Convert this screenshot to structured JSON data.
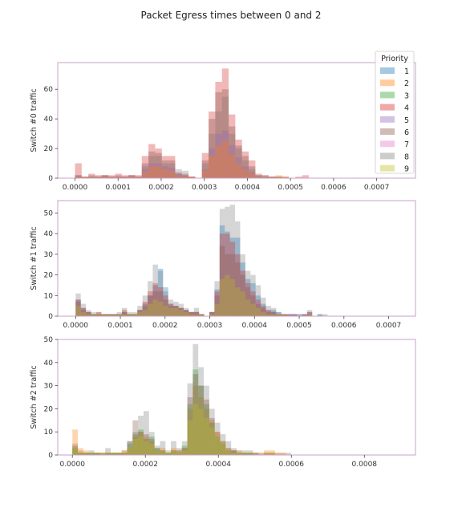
{
  "title": "Packet Egress times between 0 and 2",
  "legend": {
    "title": "Priority",
    "entries": [
      "1",
      "2",
      "3",
      "4",
      "5",
      "6",
      "7",
      "8",
      "9"
    ],
    "colors": [
      "#1f77b4",
      "#ff7f0e",
      "#2ca02c",
      "#d62728",
      "#9467bd",
      "#8c564b",
      "#e377c2",
      "#7f7f7f",
      "#bcbd22"
    ]
  },
  "chart_data": [
    {
      "type": "histogram",
      "ylabel": "Switch #0 traffic",
      "xlim": [
        -4e-05,
        0.00079
      ],
      "ylim": [
        0,
        78
      ],
      "xticks": [
        0,
        0.0001,
        0.0002,
        0.0003,
        0.0004,
        0.0005,
        0.0006,
        0.0007
      ],
      "xtick_labels": [
        "0.0000",
        "0.0001",
        "0.0002",
        "0.0003",
        "0.0004",
        "0.0005",
        "0.0006",
        "0.0007"
      ],
      "yticks": [
        0,
        20,
        40,
        60
      ],
      "bin_width": 1.55e-05,
      "x": [
        0.0,
        1.55e-05,
        3.1e-05,
        4.65e-05,
        6.2e-05,
        7.75e-05,
        9.3e-05,
        0.0001085,
        0.000124,
        0.0001395,
        0.000155,
        0.0001705,
        0.000186,
        0.0002015,
        0.000217,
        0.0002325,
        0.000248,
        0.0002635,
        0.000279,
        0.0002945,
        0.00031,
        0.0003255,
        0.000341,
        0.0003565,
        0.000372,
        0.0003875,
        0.000403,
        0.0004185,
        0.000434,
        0.0004495,
        0.000465,
        0.0004805,
        0.000496,
        0.0005115,
        0.000527
      ],
      "series": [
        {
          "name": "4",
          "values": [
            10,
            1,
            3,
            2,
            2,
            2,
            3,
            2,
            2,
            2,
            15,
            23,
            20,
            15,
            15,
            3,
            2,
            1,
            0,
            17,
            45,
            65,
            74,
            43,
            26,
            18,
            12,
            3,
            2,
            1,
            1,
            1,
            0,
            1,
            2
          ]
        },
        {
          "name": "8",
          "values": [
            2,
            1,
            2,
            1,
            2,
            1,
            2,
            1,
            2,
            1,
            8,
            15,
            15,
            10,
            10,
            6,
            5,
            1,
            0,
            10,
            30,
            45,
            55,
            30,
            20,
            12,
            6,
            2,
            2,
            1,
            1,
            1,
            0,
            0,
            0
          ]
        },
        {
          "name": "6",
          "values": [
            2,
            1,
            1,
            1,
            2,
            1,
            1,
            1,
            2,
            1,
            10,
            18,
            17,
            12,
            12,
            4,
            3,
            1,
            0,
            12,
            40,
            58,
            60,
            35,
            22,
            15,
            8,
            2,
            1,
            1,
            1,
            0,
            0,
            0,
            0
          ]
        },
        {
          "name": "5",
          "values": [
            1,
            0,
            1,
            1,
            1,
            1,
            1,
            1,
            1,
            1,
            6,
            10,
            10,
            8,
            7,
            3,
            2,
            1,
            0,
            6,
            20,
            30,
            32,
            22,
            14,
            8,
            4,
            1,
            1,
            1,
            0,
            0,
            0,
            0,
            0
          ]
        },
        {
          "name": "2",
          "values": [
            1,
            1,
            1,
            1,
            1,
            1,
            1,
            1,
            1,
            1,
            4,
            8,
            8,
            6,
            5,
            2,
            2,
            1,
            0,
            5,
            15,
            22,
            25,
            16,
            10,
            6,
            3,
            1,
            1,
            1,
            2,
            1,
            0,
            0,
            0
          ]
        }
      ]
    },
    {
      "type": "histogram",
      "ylabel": "Switch #1 traffic",
      "xlim": [
        -4e-05,
        0.00076
      ],
      "ylim": [
        0,
        56
      ],
      "xticks": [
        0,
        0.0001,
        0.0002,
        0.0003,
        0.0004,
        0.0005,
        0.0006,
        0.0007
      ],
      "xtick_labels": [
        "0.0000",
        "0.0001",
        "0.0002",
        "0.0003",
        "0.0004",
        "0.0005",
        "0.0006",
        "0.0007"
      ],
      "yticks": [
        0,
        10,
        20,
        30,
        40,
        50
      ],
      "bin_width": 1.15e-05,
      "x": [
        0.0,
        1.15e-05,
        2.3e-05,
        3.45e-05,
        4.6e-05,
        5.75e-05,
        6.9e-05,
        8.05e-05,
        9.2e-05,
        0.0001035,
        0.000115,
        0.0001265,
        0.000138,
        0.0001495,
        0.000161,
        0.0001725,
        0.000184,
        0.0001955,
        0.000207,
        0.0002185,
        0.00023,
        0.0002415,
        0.000253,
        0.0002645,
        0.000276,
        0.0002875,
        0.000299,
        0.0003105,
        0.000322,
        0.0003335,
        0.000345,
        0.0003565,
        0.000368,
        0.0003795,
        0.000391,
        0.0004025,
        0.000414,
        0.0004255,
        0.000437,
        0.0004485,
        0.00046,
        0.0004715,
        0.000483,
        0.0004945,
        0.000506,
        0.0005175,
        0.000529,
        0.0005405,
        0.000552
      ],
      "series": [
        {
          "name": "8",
          "values": [
            11,
            6,
            3,
            2,
            2,
            1,
            1,
            1,
            2,
            4,
            2,
            2,
            5,
            10,
            17,
            25,
            22,
            12,
            8,
            7,
            6,
            4,
            2,
            4,
            1,
            0,
            2,
            17,
            52,
            53,
            54,
            46,
            30,
            22,
            20,
            15,
            9,
            5,
            4,
            2,
            1,
            1,
            1,
            1,
            1,
            3,
            0,
            1,
            1
          ]
        },
        {
          "name": "1",
          "values": [
            8,
            4,
            2,
            1,
            1,
            1,
            1,
            1,
            1,
            2,
            1,
            1,
            3,
            6,
            10,
            15,
            23,
            14,
            6,
            5,
            4,
            3,
            2,
            2,
            1,
            0,
            2,
            13,
            44,
            41,
            38,
            38,
            26,
            18,
            16,
            10,
            6,
            3,
            3,
            2,
            1,
            1,
            1,
            1,
            1,
            2,
            0,
            1,
            0
          ]
        },
        {
          "name": "4",
          "values": [
            8,
            4,
            2,
            1,
            2,
            1,
            1,
            1,
            1,
            3,
            1,
            1,
            3,
            7,
            12,
            16,
            14,
            10,
            6,
            5,
            4,
            3,
            2,
            2,
            1,
            0,
            2,
            12,
            40,
            40,
            36,
            30,
            22,
            16,
            12,
            8,
            5,
            3,
            2,
            1,
            1,
            1,
            1,
            0,
            1,
            2,
            0,
            0,
            0
          ]
        },
        {
          "name": "6",
          "values": [
            7,
            3,
            2,
            1,
            1,
            1,
            1,
            1,
            1,
            2,
            1,
            1,
            3,
            5,
            10,
            12,
            12,
            8,
            5,
            5,
            4,
            3,
            2,
            2,
            1,
            0,
            2,
            10,
            34,
            30,
            30,
            26,
            20,
            14,
            10,
            6,
            4,
            2,
            2,
            1,
            1,
            0,
            0,
            0,
            0,
            1,
            0,
            0,
            0
          ]
        },
        {
          "name": "9",
          "values": [
            5,
            2,
            1,
            1,
            1,
            1,
            1,
            1,
            1,
            1,
            1,
            1,
            2,
            3,
            6,
            8,
            7,
            5,
            4,
            4,
            3,
            2,
            1,
            1,
            1,
            0,
            1,
            6,
            18,
            20,
            18,
            14,
            12,
            8,
            6,
            4,
            2,
            1,
            1,
            1,
            1,
            0,
            0,
            0,
            0,
            1,
            0,
            0,
            0
          ]
        }
      ]
    },
    {
      "type": "histogram",
      "ylabel": "Switch #2 traffic",
      "xlim": [
        -4e-05,
        0.00094
      ],
      "ylim": [
        0,
        50
      ],
      "xticks": [
        0,
        0.0002,
        0.0004,
        0.0006,
        0.0008
      ],
      "xtick_labels": [
        "0.0000",
        "0.0002",
        "0.0004",
        "0.0006",
        "0.0008"
      ],
      "yticks": [
        0,
        10,
        20,
        30,
        40,
        50
      ],
      "bin_width": 1.5e-05,
      "x": [
        0.0,
        1.5e-05,
        3e-05,
        4.5e-05,
        6e-05,
        7.5e-05,
        9e-05,
        0.000105,
        0.00012,
        0.000135,
        0.00015,
        0.000165,
        0.00018,
        0.000195,
        0.00021,
        0.000225,
        0.00024,
        0.000255,
        0.00027,
        0.000285,
        0.0003,
        0.000315,
        0.00033,
        0.000345,
        0.00036,
        0.000375,
        0.00039,
        0.000405,
        0.00042,
        0.000435,
        0.00045,
        0.000465,
        0.00048,
        0.000495,
        0.00051,
        0.000525,
        0.00054,
        0.000555,
        0.00057,
        0.000585
      ],
      "series": [
        {
          "name": "8",
          "values": [
            5,
            2,
            1,
            2,
            1,
            1,
            3,
            1,
            1,
            2,
            6,
            10,
            17,
            19,
            10,
            4,
            6,
            2,
            6,
            3,
            6,
            31,
            48,
            38,
            30,
            20,
            14,
            9,
            6,
            3,
            2,
            2,
            2,
            1,
            1,
            1,
            1,
            1,
            1,
            1
          ]
        },
        {
          "name": "2",
          "values": [
            11,
            3,
            2,
            1,
            1,
            1,
            1,
            1,
            1,
            2,
            3,
            8,
            10,
            8,
            6,
            2,
            3,
            1,
            3,
            2,
            3,
            20,
            30,
            25,
            20,
            15,
            10,
            6,
            3,
            2,
            2,
            1,
            1,
            1,
            1,
            2,
            2,
            1,
            1,
            0
          ]
        },
        {
          "name": "3",
          "values": [
            3,
            1,
            1,
            1,
            1,
            0,
            1,
            1,
            1,
            1,
            5,
            9,
            11,
            7,
            8,
            3,
            2,
            1,
            2,
            1,
            4,
            22,
            37,
            30,
            22,
            14,
            8,
            5,
            2,
            2,
            1,
            1,
            1,
            0,
            0,
            0,
            0,
            0,
            0,
            0
          ]
        },
        {
          "name": "6",
          "values": [
            4,
            1,
            1,
            1,
            1,
            1,
            1,
            1,
            1,
            1,
            6,
            15,
            10,
            9,
            7,
            3,
            2,
            1,
            2,
            2,
            3,
            25,
            35,
            30,
            24,
            16,
            10,
            6,
            3,
            2,
            1,
            1,
            1,
            1,
            0,
            1,
            1,
            0,
            0,
            0
          ]
        },
        {
          "name": "9",
          "values": [
            3,
            1,
            1,
            1,
            1,
            1,
            1,
            1,
            1,
            1,
            3,
            7,
            8,
            6,
            5,
            2,
            2,
            1,
            2,
            1,
            2,
            15,
            22,
            20,
            16,
            12,
            8,
            5,
            2,
            1,
            1,
            1,
            1,
            0,
            0,
            1,
            1,
            0,
            0,
            0
          ]
        }
      ]
    }
  ]
}
